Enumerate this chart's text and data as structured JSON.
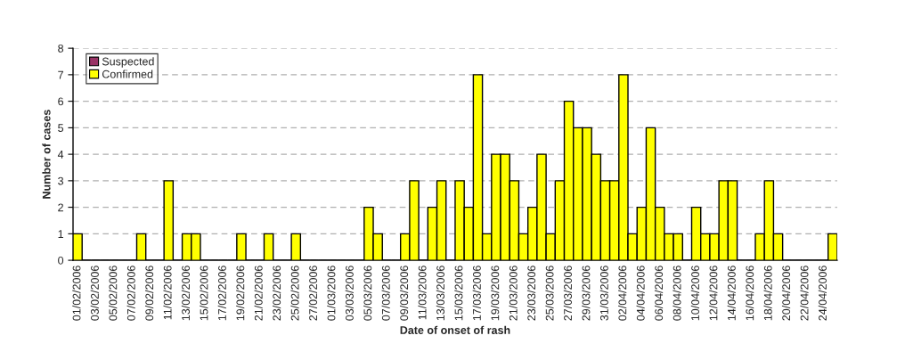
{
  "chart_data": {
    "type": "bar",
    "xlabel": "Date of onset of rash",
    "ylabel": "Number of cases",
    "stacked": true,
    "categories": [
      "01/02/2006",
      null,
      "03/02/2006",
      null,
      "05/02/2006",
      null,
      "07/02/2006",
      null,
      "09/02/2006",
      null,
      "11/02/2006",
      null,
      "13/02/2006",
      null,
      "15/02/2006",
      null,
      "17/02/2006",
      null,
      "19/02/2006",
      null,
      "21/02/2006",
      null,
      "23/02/2006",
      null,
      "25/02/2006",
      null,
      "27/02/2006",
      null,
      "01/03/2006",
      null,
      "03/03/2006",
      null,
      "05/03/2006",
      null,
      "07/03/2006",
      null,
      "09/03/2006",
      null,
      "11/03/2006",
      null,
      "13/03/2006",
      null,
      "15/03/2006",
      null,
      "17/03/2006",
      null,
      "19/03/2006",
      null,
      "21/03/2006",
      null,
      "23/03/2006",
      null,
      "25/03/2006",
      null,
      "27/03/2006",
      null,
      "29/03/2006",
      null,
      "31/03/2006",
      null,
      "02/04/2006",
      null,
      "04/04/2006",
      null,
      "06/04/2006",
      null,
      "08/04/2006",
      null,
      "10/04/2006",
      null,
      "12/04/2006",
      null,
      "14/04/2006",
      null,
      "16/04/2006",
      null,
      "18/04/2006",
      null,
      "20/04/2006",
      null,
      "22/04/2006",
      null,
      "24/04/2006",
      null
    ],
    "series": [
      {
        "name": "Suspected",
        "color": "#993366",
        "values": [
          0,
          0,
          0,
          0,
          0,
          0,
          0,
          0,
          0,
          0,
          0,
          0,
          0,
          0,
          0,
          0,
          0,
          0,
          0,
          0,
          0,
          0,
          0,
          0,
          0,
          0,
          0,
          0,
          0,
          0,
          0,
          0,
          0,
          0,
          0,
          0,
          0,
          0,
          0,
          0,
          0,
          0,
          0,
          0,
          0,
          0,
          0,
          0,
          0,
          0,
          0,
          0,
          0,
          0,
          0,
          0,
          0,
          0,
          0,
          0,
          0,
          0,
          0,
          0,
          0,
          0,
          0,
          0,
          0,
          0,
          0,
          0,
          0,
          0,
          0,
          0,
          0,
          0,
          0,
          0,
          0,
          0,
          0,
          0
        ]
      },
      {
        "name": "Confirmed",
        "color": "#ffff00",
        "values": [
          1,
          0,
          0,
          0,
          0,
          0,
          0,
          1,
          0,
          0,
          3,
          0,
          1,
          1,
          0,
          0,
          0,
          0,
          1,
          0,
          0,
          1,
          0,
          0,
          1,
          0,
          0,
          0,
          0,
          0,
          0,
          0,
          2,
          1,
          0,
          0,
          1,
          3,
          0,
          2,
          3,
          0,
          3,
          2,
          7,
          1,
          4,
          4,
          3,
          1,
          2,
          4,
          1,
          3,
          6,
          5,
          5,
          4,
          3,
          3,
          7,
          1,
          2,
          5,
          2,
          1,
          1,
          0,
          2,
          1,
          1,
          3,
          3,
          0,
          0,
          1,
          3,
          1,
          0,
          0,
          0,
          0,
          0,
          1
        ]
      }
    ],
    "ylim": [
      0,
      8
    ],
    "yticks": [
      0,
      1,
      2,
      3,
      4,
      5,
      6,
      7,
      8
    ],
    "grid": "y",
    "legend": "top left"
  }
}
